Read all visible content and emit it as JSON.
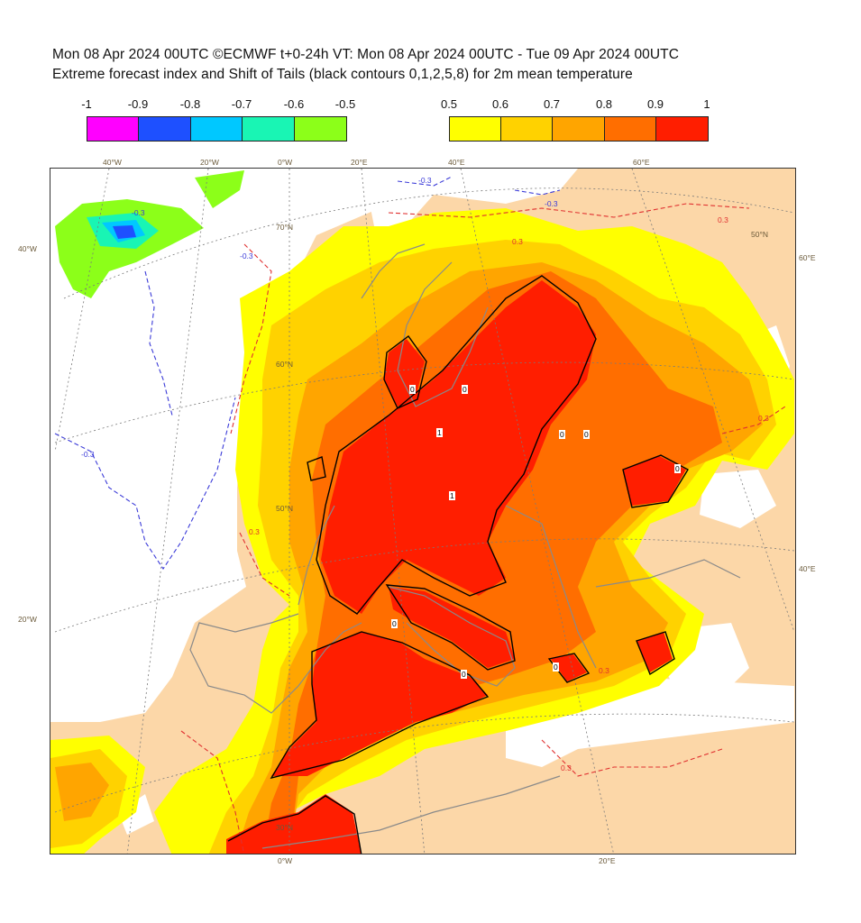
{
  "title": {
    "line1": "Mon 08 Apr 2024 00UTC ©ECMWF t+0-24h  VT: Mon 08 Apr 2024 00UTC - Tue 09 Apr 2024 00UTC",
    "line2": "Extreme forecast index and Shift of Tails (black contours 0,1,2,5,8) for 2m mean temperature"
  },
  "colorbars": {
    "negative": {
      "labels": [
        "-1",
        "-0.9",
        "-0.8",
        "-0.7",
        "-0.6",
        "-0.5"
      ],
      "colors": [
        "#ff00ff",
        "#1e50ff",
        "#00c8ff",
        "#19f5b4",
        "#8cff19"
      ]
    },
    "positive": {
      "labels": [
        "0.5",
        "0.6",
        "0.7",
        "0.8",
        "0.9",
        "1"
      ],
      "colors": [
        "#ffff00",
        "#ffd200",
        "#ffa500",
        "#ff6e00",
        "#ff1e00"
      ]
    }
  },
  "colors": {
    "land_background": "#fcd7a8",
    "sea_neutral": "#ffffff",
    "efi_positive_contour": "#e03030",
    "efi_negative_contour": "#3a3ad8",
    "sot_contour": "#000000",
    "coastline": "#8a8a8a",
    "grid": "#7a7a7a"
  },
  "axis_labels": {
    "top": [
      "40°W",
      "20°W",
      "0°W",
      "20°E",
      "40°E",
      "60°E"
    ],
    "bottom": [
      "0°W",
      "20°E"
    ],
    "left": [
      "40°W",
      "20°W"
    ],
    "right": [
      "60°E",
      "40°E"
    ],
    "interior_lat": [
      "70°N",
      "60°N",
      "50°N",
      "30°N",
      "50°N"
    ]
  },
  "contour_labels": {
    "efi": [
      "-0.3",
      "0.3",
      "-0.3",
      "0.3",
      "0.3",
      "-0.3",
      "0.3",
      "-0.3",
      "0.3",
      "0.3",
      "-0.3"
    ],
    "sot": [
      "0",
      "1",
      "1",
      "0",
      "0",
      "0",
      "0",
      "0",
      "0",
      "0"
    ]
  }
}
